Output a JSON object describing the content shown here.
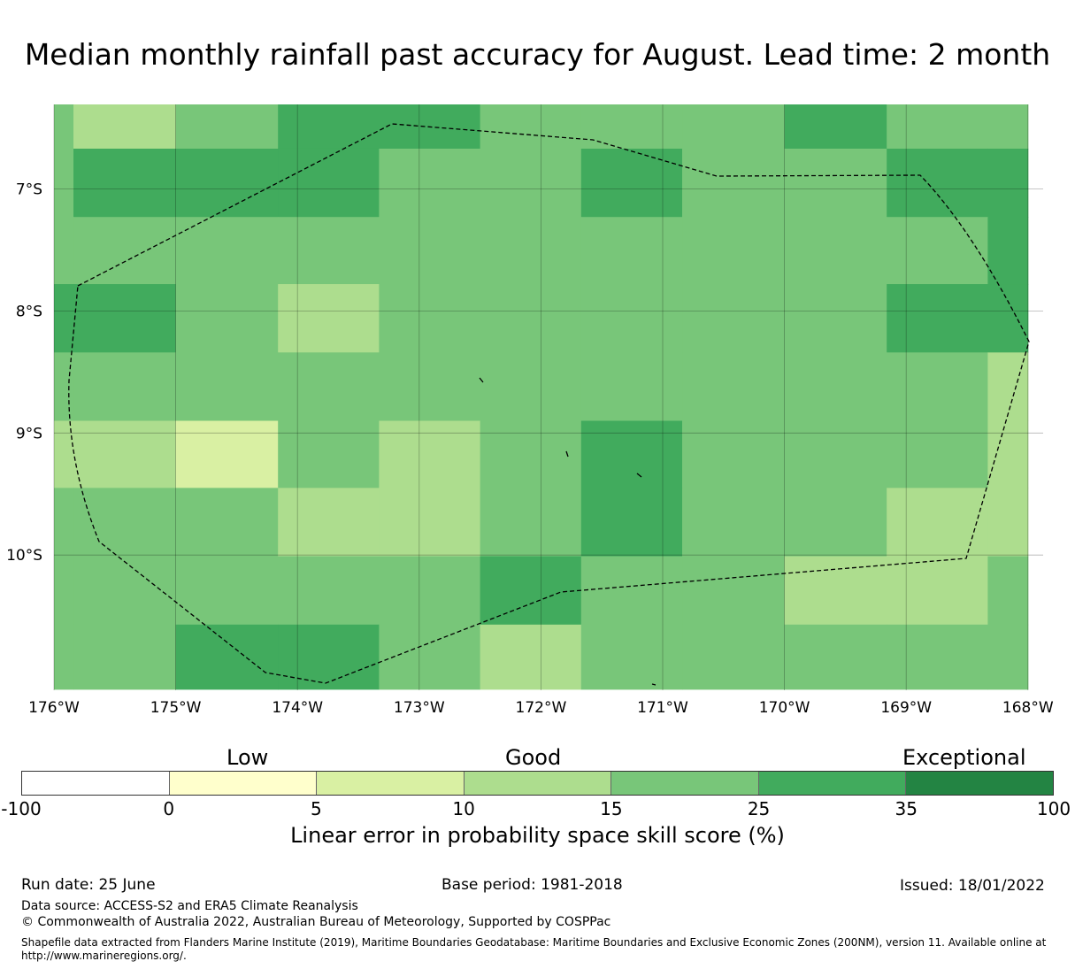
{
  "title": "Median monthly rainfall past accuracy for August. Lead time: 2 month",
  "map": {
    "lon_labels": [
      "176°W",
      "175°W",
      "174°W",
      "173°W",
      "172°W",
      "171°W",
      "170°W",
      "169°W",
      "168°W"
    ],
    "lat_labels": [
      "7°S",
      "8°S",
      "9°S",
      "10°S"
    ],
    "grid": {
      "lon_edges": [
        176.0,
        175.84,
        175.0,
        174.16,
        173.33,
        172.5,
        171.67,
        170.84,
        170.0,
        169.16,
        168.33,
        168.0
      ],
      "lat_edges": [
        6.3,
        6.67,
        7.23,
        7.78,
        8.34,
        8.9,
        9.45,
        10.01,
        10.57,
        11.1
      ],
      "class_values_row_major": [
        [
          4,
          3,
          4,
          5,
          5,
          4,
          4,
          4,
          5,
          4,
          4
        ],
        [
          4,
          5,
          5,
          5,
          4,
          4,
          5,
          4,
          4,
          5,
          5
        ],
        [
          4,
          4,
          4,
          4,
          4,
          4,
          4,
          4,
          4,
          4,
          5
        ],
        [
          5,
          5,
          4,
          3,
          4,
          4,
          4,
          4,
          4,
          5,
          5
        ],
        [
          4,
          4,
          4,
          4,
          4,
          4,
          4,
          4,
          4,
          4,
          3
        ],
        [
          3,
          3,
          2,
          4,
          3,
          4,
          5,
          4,
          4,
          4,
          3
        ],
        [
          4,
          4,
          4,
          3,
          3,
          4,
          5,
          4,
          4,
          3,
          3
        ],
        [
          4,
          4,
          4,
          4,
          4,
          5,
          4,
          4,
          3,
          3,
          4
        ],
        [
          4,
          4,
          5,
          5,
          4,
          3,
          4,
          4,
          4,
          4,
          4
        ]
      ]
    }
  },
  "legend": {
    "headings": {
      "low": "Low",
      "good": "Good",
      "exceptional": "Exceptional"
    },
    "colors": [
      "#ffffff",
      "#ffffcc",
      "#d9f0a3",
      "#addd8e",
      "#78c679",
      "#41ab5d",
      "#238443"
    ],
    "ticks": [
      "-100",
      "0",
      "5",
      "10",
      "15",
      "25",
      "35",
      "100"
    ],
    "label": "Linear error in probability space skill score (%)"
  },
  "footer": {
    "run_date": "Run date: 25 June",
    "base_period": "Base period: 1981-2018",
    "issued": "Issued: 18/01/2022",
    "data_source": "Data source: ACCESS-S2 and ERA5 Climate Reanalysis",
    "copyright": "© Commonwealth of Australia 2022, Australian Bureau of Meteorology, Supported by COSPPac",
    "shapefile": "Shapefile data extracted from Flanders Marine Institute (2019), Maritime Boundaries Geodatabase: Maritime Boundaries and Exclusive Economic Zones (200NM), version 11. Available online at http://www.marineregions.org/."
  }
}
